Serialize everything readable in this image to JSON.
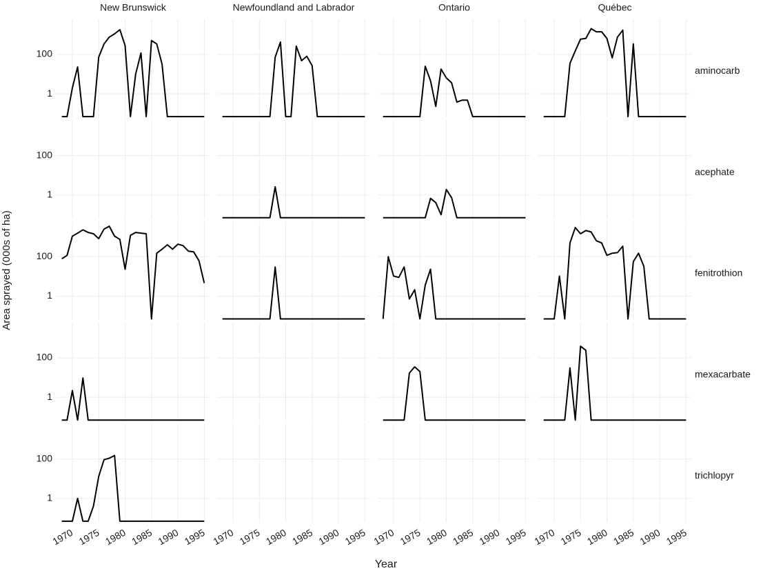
{
  "chart_data": {
    "type": "line",
    "x_label": "Year",
    "y_label": "Area sprayed (000s of ha)",
    "columns": [
      "New Brunswick",
      "Newfoundland and Labrador",
      "Ontario",
      "Québec"
    ],
    "rows": [
      "aminocarb",
      "acephate",
      "fenitrothion",
      "mexacarbate",
      "trichlopyr"
    ],
    "log_scale": true,
    "grid": true,
    "color": "#000000",
    "xlim": [
      1967,
      1996
    ],
    "xticks": [
      1970,
      1975,
      1980,
      1985,
      1990,
      1995
    ],
    "ylim": [
      0.06,
      6000
    ],
    "yticks": [
      1,
      100
    ],
    "x": [
      1968,
      1969,
      1970,
      1971,
      1972,
      1973,
      1974,
      1975,
      1976,
      1977,
      1978,
      1979,
      1980,
      1981,
      1982,
      1983,
      1984,
      1985,
      1986,
      1987,
      1988,
      1989,
      1990,
      1991,
      1992,
      1993,
      1994,
      1995
    ],
    "values": [
      [
        [
          0.07,
          0.07,
          2,
          23,
          0.07,
          0.07,
          0.07,
          72,
          340,
          750,
          1100,
          1800,
          280,
          0.07,
          10,
          117,
          0.07,
          500,
          340,
          32,
          0.07,
          0.07,
          0.07,
          0.07,
          0.07,
          0.07,
          0.07,
          0.07
        ],
        [
          0.07,
          0.07,
          0.07,
          0.07,
          0.07,
          0.07,
          0.07,
          0.07,
          0.07,
          0.07,
          72,
          420,
          0.07,
          0.07,
          260,
          48,
          80,
          27,
          0.07,
          0.07,
          0.07,
          0.07,
          0.07,
          0.07,
          0.07,
          0.07,
          0.07,
          0.07
        ],
        [
          0.07,
          0.07,
          0.07,
          0.07,
          0.07,
          0.07,
          0.07,
          0.07,
          25,
          4.6,
          0.23,
          18,
          6.4,
          3.6,
          0.38,
          0.48,
          0.48,
          0.07,
          0.07,
          0.07,
          0.07,
          0.07,
          0.07,
          0.07,
          0.07,
          0.07,
          0.07,
          0.07
        ],
        [
          0.07,
          0.07,
          0.07,
          0.07,
          0.07,
          35,
          150,
          590,
          640,
          2000,
          1400,
          1400,
          640,
          67,
          750,
          1700,
          0.07,
          340,
          0.07,
          0.07,
          0.07,
          0.07,
          0.07,
          0.07,
          0.07,
          0.07,
          0.07,
          0.07
        ]
      ],
      [
        null,
        [
          0.07,
          0.07,
          0.07,
          0.07,
          0.07,
          0.07,
          0.07,
          0.07,
          0.07,
          0.07,
          2.6,
          0.07,
          0.07,
          0.07,
          0.07,
          0.07,
          0.07,
          0.07,
          0.07,
          0.07,
          0.07,
          0.07,
          0.07,
          0.07,
          0.07,
          0.07,
          0.07,
          0.07
        ],
        [
          0.07,
          0.07,
          0.07,
          0.07,
          0.07,
          0.07,
          0.07,
          0.07,
          0.07,
          0.67,
          0.41,
          0.1,
          1.9,
          0.72,
          0.07,
          0.07,
          0.07,
          0.07,
          0.07,
          0.07,
          0.07,
          0.07,
          0.07,
          0.07,
          0.07,
          0.07,
          0.07,
          0.07
        ],
        null
      ],
      [
        [
          78,
          117,
          1100,
          1560,
          2300,
          1700,
          1450,
          820,
          2500,
          3500,
          1100,
          750,
          23,
          1200,
          1700,
          1560,
          1450,
          0.07,
          150,
          240,
          400,
          240,
          430,
          360,
          190,
          175,
          62,
          4.6
        ],
        [
          0.07,
          0.07,
          0.07,
          0.07,
          0.07,
          0.07,
          0.07,
          0.07,
          0.07,
          0.07,
          30,
          0.07,
          0.07,
          0.07,
          0.07,
          0.07,
          0.07,
          0.07,
          0.07,
          0.07,
          0.07,
          0.07,
          0.07,
          0.07,
          0.07,
          0.07,
          0.07,
          0.07
        ],
        [
          0.07,
          100,
          10.4,
          8.9,
          30,
          0.72,
          2.1,
          0.07,
          3.6,
          23,
          0.07,
          0.07,
          0.07,
          0.07,
          0.07,
          0.07,
          0.07,
          0.07,
          0.07,
          0.07,
          0.07,
          0.07,
          0.07,
          0.07,
          0.07,
          0.07,
          0.07,
          0.07
        ],
        [
          0.07,
          0.07,
          0.07,
          10.4,
          0.07,
          500,
          3000,
          1450,
          2100,
          1800,
          640,
          500,
          117,
          150,
          160,
          340,
          0.07,
          56,
          150,
          32,
          0.07,
          0.07,
          0.07,
          0.07,
          0.07,
          0.07,
          0.07,
          0.07
        ]
      ],
      [
        [
          0.07,
          0.07,
          2.2,
          0.07,
          9.6,
          0.07,
          0.07,
          0.07,
          0.07,
          0.07,
          0.07,
          0.07,
          0.07,
          0.07,
          0.07,
          0.07,
          0.07,
          0.07,
          0.07,
          0.07,
          0.07,
          0.07,
          0.07,
          0.07,
          0.07,
          0.07,
          0.07,
          0.07
        ],
        null,
        [
          0.07,
          0.07,
          0.07,
          0.07,
          0.07,
          17,
          35,
          20,
          0.07,
          0.07,
          0.07,
          0.07,
          0.07,
          0.07,
          0.07,
          0.07,
          0.07,
          0.07,
          0.07,
          0.07,
          0.07,
          0.07,
          0.07,
          0.07,
          0.07,
          0.07,
          0.07,
          0.07
        ],
        [
          0.07,
          0.07,
          0.07,
          0.07,
          0.07,
          31,
          0.07,
          390,
          240,
          0.07,
          0.07,
          0.07,
          0.07,
          0.07,
          0.07,
          0.07,
          0.07,
          0.07,
          0.07,
          0.07,
          0.07,
          0.07,
          0.07,
          0.07,
          0.07,
          0.07,
          0.07,
          0.07
        ]
      ],
      [
        [
          0.07,
          0.07,
          0.07,
          1,
          0.07,
          0.07,
          0.41,
          13,
          92,
          110,
          150,
          0.07,
          0.07,
          0.07,
          0.07,
          0.07,
          0.07,
          0.07,
          0.07,
          0.07,
          0.07,
          0.07,
          0.07,
          0.07,
          0.07,
          0.07,
          0.07,
          0.07
        ],
        null,
        null,
        null
      ]
    ]
  }
}
